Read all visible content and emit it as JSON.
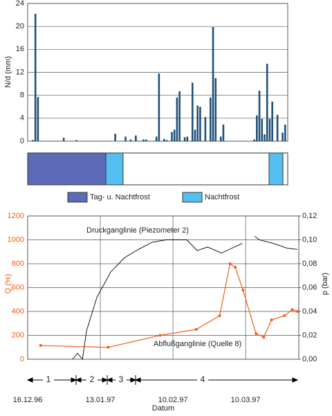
{
  "chart_data": [
    {
      "type": "bar",
      "y_label": "N/d (mm)",
      "color": "#1d4f78",
      "x": [
        2,
        3,
        4,
        14,
        19,
        34,
        38,
        40,
        42,
        45,
        46,
        50,
        51,
        53,
        54,
        56,
        57,
        58,
        59,
        61,
        62,
        64,
        65,
        66,
        67,
        69,
        71,
        72,
        73,
        75,
        76,
        88,
        89,
        90,
        91,
        92,
        93,
        94,
        95,
        97,
        99,
        100
      ],
      "values": [
        0.2,
        22.2,
        7.7,
        0.6,
        0.2,
        1.3,
        0.8,
        0.3,
        1.0,
        0.3,
        0.3,
        0.8,
        11.8,
        0.4,
        0.2,
        1.6,
        2.0,
        7.6,
        8.7,
        0.7,
        0.8,
        10.2,
        2.0,
        6.2,
        6.0,
        4.2,
        7.6,
        19.9,
        11.0,
        0.8,
        2.9,
        0.3,
        4.5,
        8.8,
        3.9,
        1.2,
        13.5,
        3.9,
        6.9,
        4.6,
        1.5,
        2.9
      ],
      "xlim": [
        0,
        101
      ],
      "ylim": [
        0,
        24
      ],
      "yticks": [
        0,
        4,
        8,
        12,
        16,
        20,
        24
      ],
      "grid": true
    },
    {
      "type": "line",
      "x_label": "Datum",
      "y_label": "Q (%)",
      "y2_label": "p (bar)",
      "xlim": [
        0,
        104.5
      ],
      "xticks": [
        {
          "value": 0,
          "label": "16.12.96"
        },
        {
          "value": 28,
          "label": "13.01.97"
        },
        {
          "value": 56,
          "label": "10.02.97"
        },
        {
          "value": 84,
          "label": "10.03.97"
        }
      ],
      "ylim": [
        0,
        1200
      ],
      "yticks": [
        0,
        200,
        400,
        600,
        800,
        1000,
        1200
      ],
      "y2lim": [
        0,
        0.12
      ],
      "y2ticks": [
        {
          "value": 0,
          "label": "0,00"
        },
        {
          "value": 0.02,
          "label": "0,02"
        },
        {
          "value": 0.04,
          "label": "0,04"
        },
        {
          "value": 0.06,
          "label": "0,06"
        },
        {
          "value": 0.08,
          "label": "0,08"
        },
        {
          "value": 0.1,
          "label": "0,10"
        },
        {
          "value": 0.12,
          "label": "0,12"
        }
      ],
      "grid": true,
      "annotations": [
        "Druckganglinie (Piezometer 2)",
        "Abflußganglinie (Quelle 8)"
      ],
      "series": [
        {
          "name": "Abflußganglinie (Quelle 8)",
          "color": "#f05a1a",
          "markers": true,
          "x": [
            5,
            31,
            51,
            65,
            74,
            78,
            80,
            83,
            88,
            91,
            94,
            99,
            102,
            104
          ],
          "values": [
            115,
            100,
            200,
            250,
            365,
            800,
            770,
            580,
            215,
            185,
            330,
            365,
            415,
            400
          ]
        },
        {
          "name": "Druckganglinie (Piezometer 2)",
          "color": "#000000",
          "markers": false,
          "axis": "y2",
          "x": [
            17.3,
            19.2,
            21.1,
            22.7,
            26.7,
            32,
            37.3,
            42.7,
            48,
            53.3,
            61.3,
            65.3,
            69.3,
            74.7,
            78.7,
            82.7,
            85,
            87.5,
            89.3,
            94.7,
            100,
            104
          ],
          "values": [
            0,
            0.005,
            0,
            0.024,
            0.052,
            0.073,
            0.085,
            0.092,
            0.098,
            0.1,
            0.1,
            0.091,
            0.094,
            0.089,
            0.093,
            0.097,
            null,
            0.103,
            0.1,
            0.097,
            0.093,
            0.092
          ]
        }
      ]
    }
  ],
  "frost_legend": [
    "Tag- u. Nachtfrost",
    "Nachtfrost"
  ],
  "phases": [
    "1",
    "2",
    "3",
    "4"
  ]
}
